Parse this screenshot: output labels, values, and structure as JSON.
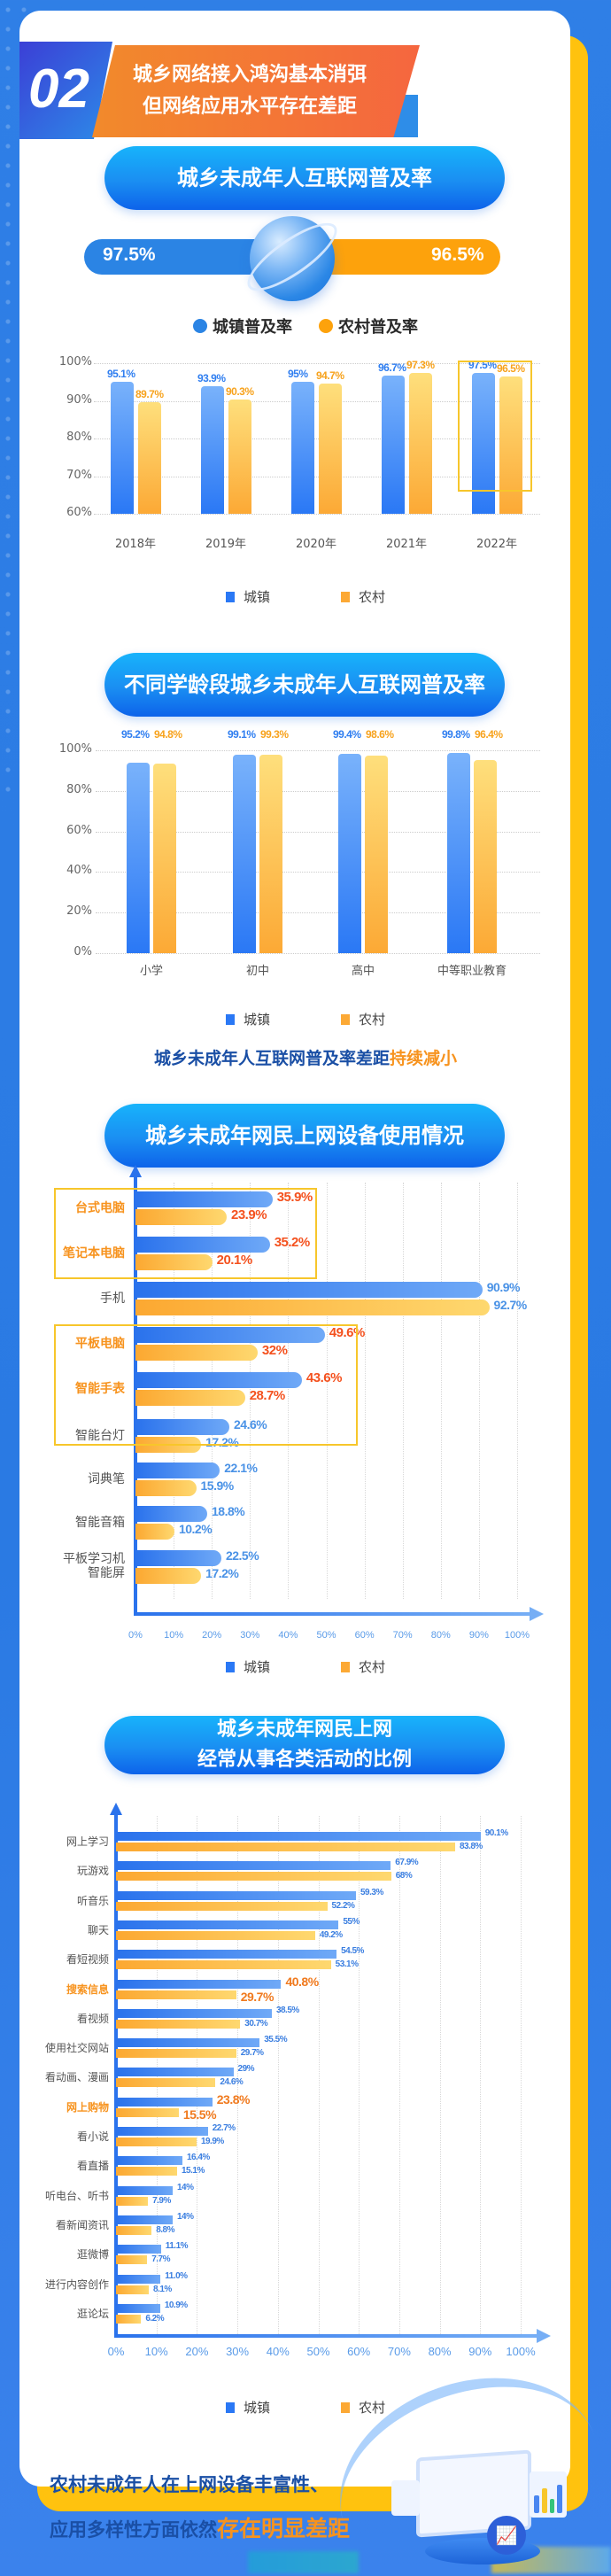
{
  "header": {
    "section_number": "02",
    "title_line1": "城乡网络接入鸿沟基本消弭",
    "title_line2": "但网络应用水平存在差距"
  },
  "section1": {
    "title": "城乡未成年人互联网普及率",
    "urban_value": "97.5%",
    "rural_value": "96.5%",
    "legend_urban": "城镇普及率",
    "legend_rural": "农村普及率",
    "legend_small_urban": "城镇",
    "legend_small_rural": "农村"
  },
  "section2": {
    "title": "不同学龄段城乡未成年人互联网普及率",
    "legend_small_urban": "城镇",
    "legend_small_rural": "农村"
  },
  "summary1": {
    "text": "城乡未成年人互联网普及率差距",
    "highlight": "持续减小"
  },
  "section3": {
    "title": "城乡未成年网民上网设备使用情况",
    "legend_small_urban": "城镇",
    "legend_small_rural": "农村"
  },
  "section4": {
    "title_line1": "城乡未成年网民上网",
    "title_line2": "经常从事各类活动的比例",
    "legend_small_urban": "城镇",
    "legend_small_rural": "农村"
  },
  "conclusion": {
    "line1": "农村未成年人在上网设备丰富性、",
    "line2": "应用多样性方面依然",
    "highlight": "存在明显差距"
  },
  "colors": {
    "urban": "#2a78f5",
    "rural": "#fca935",
    "accent_orange": "#f7931e",
    "highlight_red": "#f4511e",
    "navy": "#1a4fa5",
    "background": "#2f7fe6",
    "frame_yellow": "#ffc20e"
  },
  "chart_data": [
    {
      "type": "bar",
      "title": "城乡未成年人互联网普及率",
      "categories": [
        "2018年",
        "2019年",
        "2020年",
        "2021年",
        "2022年"
      ],
      "series": [
        {
          "name": "城镇",
          "values": [
            95.1,
            93.9,
            95,
            96.7,
            97.5
          ],
          "labels": [
            "95.1%",
            "93.9%",
            "95%",
            "96.7%",
            "97.5%"
          ]
        },
        {
          "name": "农村",
          "values": [
            89.7,
            90.3,
            94.7,
            97.3,
            96.5
          ],
          "labels": [
            "89.7%",
            "90.3%",
            "94.7%",
            "97.3%",
            "96.5%"
          ]
        }
      ],
      "yticks": [
        "100%",
        "90%",
        "80%",
        "70%",
        "60%"
      ],
      "ylim": [
        60,
        100
      ],
      "highlighted_category": "2022年",
      "legend_position": "bottom"
    },
    {
      "type": "bar",
      "title": "不同学龄段城乡未成年人互联网普及率",
      "categories": [
        "小学",
        "初中",
        "高中",
        "中等职业教育"
      ],
      "series": [
        {
          "name": "城镇",
          "values": [
            95.2,
            99.1,
            99.4,
            99.8
          ],
          "labels": [
            "95.2%",
            "99.1%",
            "99.4%",
            "99.8%"
          ]
        },
        {
          "name": "农村",
          "values": [
            94.8,
            99.3,
            98.6,
            96.4
          ],
          "labels": [
            "94.8%",
            "99.3%",
            "98.6%",
            "96.4%"
          ]
        }
      ],
      "yticks": [
        "100%",
        "80%",
        "60%",
        "40%",
        "20%",
        "0%"
      ],
      "ylim": [
        0,
        100
      ],
      "legend_position": "bottom"
    },
    {
      "type": "bar",
      "orientation": "horizontal",
      "title": "城乡未成年网民上网设备使用情况",
      "categories": [
        "台式电脑",
        "笔记本电脑",
        "手机",
        "平板电脑",
        "智能手表",
        "智能台灯",
        "词典笔",
        "智能音箱",
        "平板学习机\n智能屏"
      ],
      "highlighted": [
        true,
        true,
        false,
        true,
        true,
        false,
        false,
        false,
        false
      ],
      "series": [
        {
          "name": "城镇",
          "values": [
            35.9,
            35.2,
            90.9,
            49.6,
            43.6,
            24.6,
            22.1,
            18.8,
            22.5
          ],
          "labels": [
            "35.9%",
            "35.2%",
            "90.9%",
            "49.6%",
            "43.6%",
            "24.6%",
            "22.1%",
            "18.8%",
            "22.5%"
          ]
        },
        {
          "name": "农村",
          "values": [
            23.9,
            20.1,
            92.7,
            32,
            28.7,
            17.2,
            15.9,
            10.2,
            17.2
          ],
          "labels": [
            "23.9%",
            "20.1%",
            "92.7%",
            "32%",
            "28.7%",
            "17.2%",
            "15.9%",
            "10.2%",
            "17.2%"
          ]
        }
      ],
      "xticks": [
        "0%",
        "10%",
        "20%",
        "30%",
        "40%",
        "50%",
        "60%",
        "70%",
        "80%",
        "90%",
        "100%"
      ],
      "xlim": [
        0,
        100
      ],
      "legend_position": "bottom"
    },
    {
      "type": "bar",
      "orientation": "horizontal",
      "title": "城乡未成年网民上网经常从事各类活动的比例",
      "categories": [
        "网上学习",
        "玩游戏",
        "听音乐",
        "聊天",
        "看短视频",
        "搜索信息",
        "看视频",
        "使用社交网站",
        "看动画、漫画",
        "网上购物",
        "看小说",
        "看直播",
        "听电台、听书",
        "看新闻资讯",
        "逛微博",
        "进行内容创作",
        "逛论坛"
      ],
      "highlighted": [
        false,
        false,
        false,
        false,
        false,
        true,
        false,
        false,
        false,
        true,
        false,
        false,
        false,
        false,
        false,
        false,
        false
      ],
      "series": [
        {
          "name": "城镇",
          "values": [
            90.1,
            67.9,
            59.3,
            55,
            54.5,
            40.8,
            38.5,
            35.5,
            29,
            23.8,
            22.7,
            16.4,
            14,
            14,
            11.1,
            11.0,
            10.9
          ],
          "labels": [
            "90.1%",
            "67.9%",
            "59.3%",
            "55%",
            "54.5%",
            "40.8%",
            "38.5%",
            "35.5%",
            "29%",
            "23.8%",
            "22.7%",
            "16.4%",
            "14%",
            "14%",
            "11.1%",
            "11.0%",
            "10.9%"
          ]
        },
        {
          "name": "农村",
          "values": [
            83.8,
            68,
            52.2,
            49.2,
            53.1,
            29.7,
            30.7,
            29.7,
            24.6,
            15.5,
            19.9,
            15.1,
            7.9,
            8.8,
            7.7,
            8.1,
            6.2
          ],
          "labels": [
            "83.8%",
            "68%",
            "52.2%",
            "49.2%",
            "53.1%",
            "29.7%",
            "30.7%",
            "29.7%",
            "24.6%",
            "15.5%",
            "19.9%",
            "15.1%",
            "7.9%",
            "8.8%",
            "7.7%",
            "8.1%",
            "6.2%"
          ]
        }
      ],
      "xticks": [
        "0%",
        "10%",
        "20%",
        "30%",
        "40%",
        "50%",
        "60%",
        "70%",
        "80%",
        "90%",
        "100%"
      ],
      "xlim": [
        0,
        100
      ],
      "legend_position": "bottom"
    }
  ]
}
